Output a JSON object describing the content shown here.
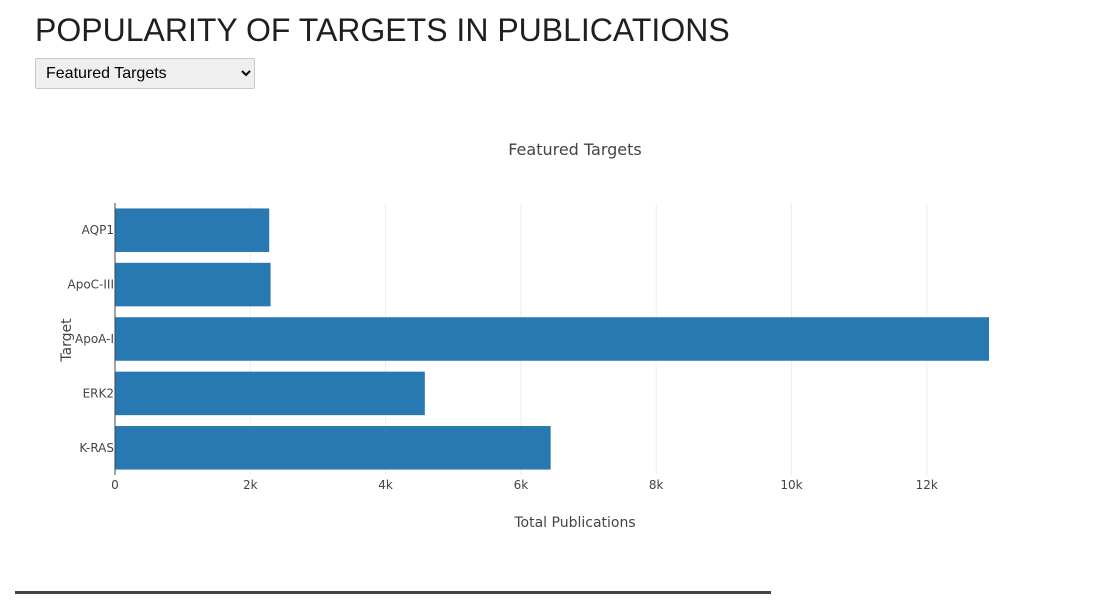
{
  "page": {
    "title": "POPULARITY OF TARGETS IN PUBLICATIONS"
  },
  "selector": {
    "selected": "Featured Targets",
    "options": [
      "Featured Targets"
    ]
  },
  "colors": {
    "bar": "#2878b2",
    "grid": "#eeeeee",
    "axis_line": "#444444",
    "tick_text": "#444444",
    "title_text": "#444444"
  },
  "chart_data": {
    "type": "bar",
    "orientation": "horizontal",
    "title": "Featured Targets",
    "xlabel": "Total Publications",
    "ylabel": "Target",
    "categories": [
      "AQP1",
      "ApoC-III",
      "ApoA-I",
      "ERK2",
      "K-RAS"
    ],
    "values": [
      2280,
      2300,
      12920,
      4580,
      6440
    ],
    "xlim": [
      0,
      12920
    ],
    "x_ticks": [
      0,
      2000,
      4000,
      6000,
      8000,
      10000,
      12000
    ],
    "x_tick_labels": [
      "0",
      "2k",
      "4k",
      "6k",
      "8k",
      "10k",
      "12k"
    ],
    "grid": true,
    "legend": "none"
  }
}
